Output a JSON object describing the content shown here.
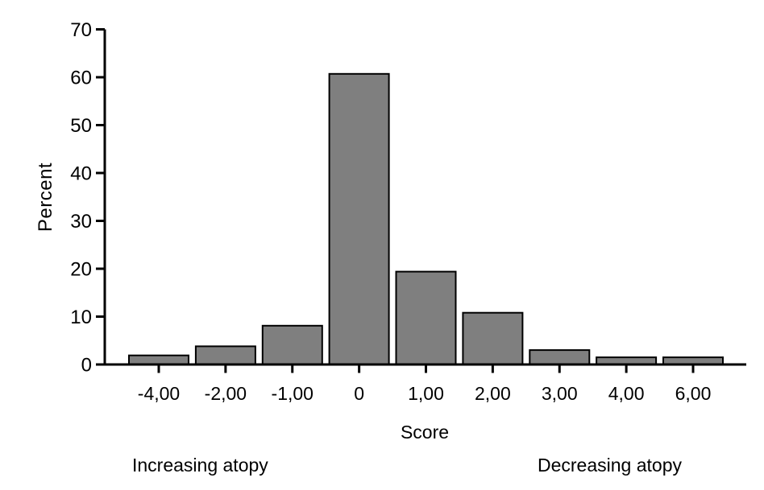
{
  "chart_data": {
    "type": "bar",
    "title": "",
    "categories": [
      "-4,00",
      "-2,00",
      "-1,00",
      "0",
      "1,00",
      "2,00",
      "3,00",
      "4,00",
      "6,00"
    ],
    "values": [
      1.9,
      3.8,
      8.1,
      60.7,
      19.4,
      10.8,
      3.0,
      1.5,
      1.5
    ],
    "xlabel": "Score",
    "ylabel": "Percent",
    "ylim": [
      0,
      70
    ],
    "ytick_step": 10,
    "ytick_labels": [
      "0",
      "10",
      "20",
      "30",
      "40",
      "50",
      "60",
      "70"
    ],
    "grid": false,
    "legend_position": "none",
    "bar_fill_color": "#7f7f7f",
    "bar_stroke_color": "#000000",
    "axis_color": "#000000",
    "background_color": "#ffffff",
    "annotations": [
      {
        "text": "Increasing atopy",
        "position": "bottom-left"
      },
      {
        "text": "Decreasing atopy",
        "position": "bottom-right"
      }
    ]
  }
}
